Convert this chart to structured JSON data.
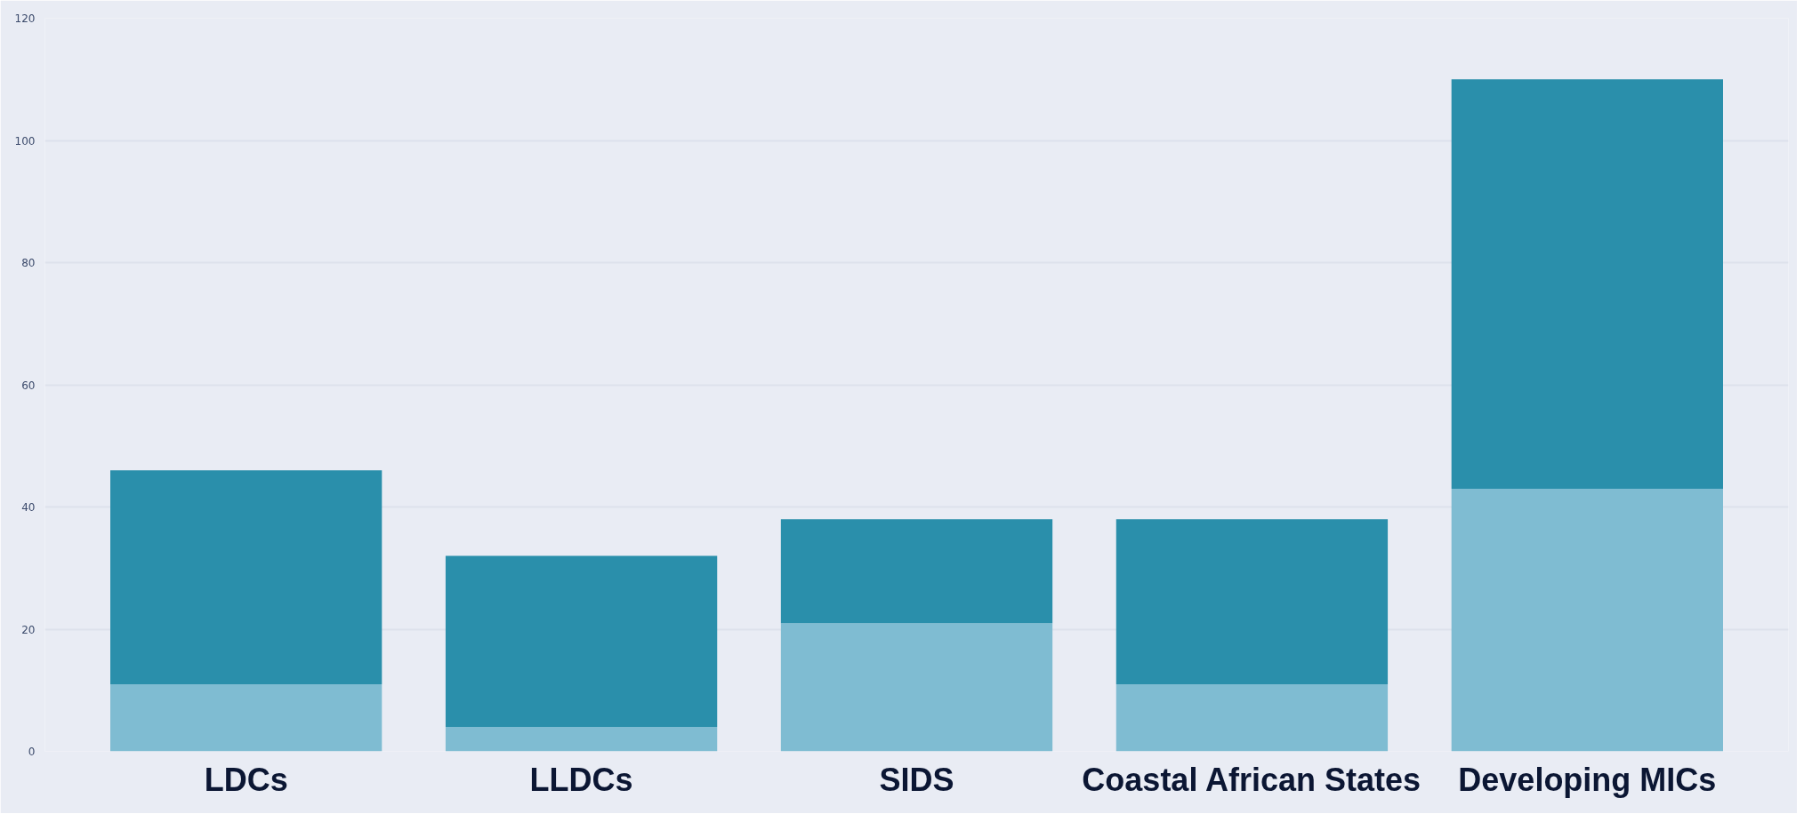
{
  "chart_data": {
    "type": "bar",
    "stacked": true,
    "categories": [
      "LDCs",
      "LLDCs",
      "SIDS",
      "Coastal African States",
      "Developing MICs"
    ],
    "series": [
      {
        "color": "#7fbcd2",
        "values": [
          11,
          4,
          21,
          11,
          43
        ]
      },
      {
        "color": "#2a8fab",
        "values": [
          35,
          28,
          17,
          27,
          67
        ]
      }
    ],
    "ylim": [
      0,
      120
    ],
    "yticks": [
      0,
      20,
      40,
      60,
      80,
      100,
      120
    ],
    "grid": "y"
  }
}
